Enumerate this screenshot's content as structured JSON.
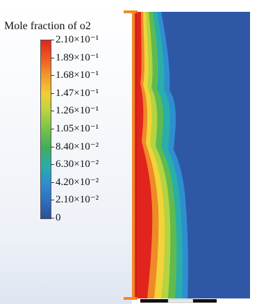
{
  "legend": {
    "title": "Mole fraction of o2",
    "labels": [
      "2.10×10⁻¹",
      "1.89×10⁻¹",
      "1.68×10⁻¹",
      "1.47×10⁻¹",
      "1.26×10⁻¹",
      "1.05×10⁻¹",
      "8.40×10⁻²",
      "6.30×10⁻²",
      "4.20×10⁻²",
      "2.10×10⁻²",
      "0"
    ]
  },
  "colors": {
    "field_blue": "#2e58a6",
    "red": "#e1241c",
    "orange": "#f08a28",
    "yellow": "#f2d33a",
    "green": "#76c24a",
    "cyan": "#2aaea8",
    "light_blue": "#2e8fd0"
  }
}
